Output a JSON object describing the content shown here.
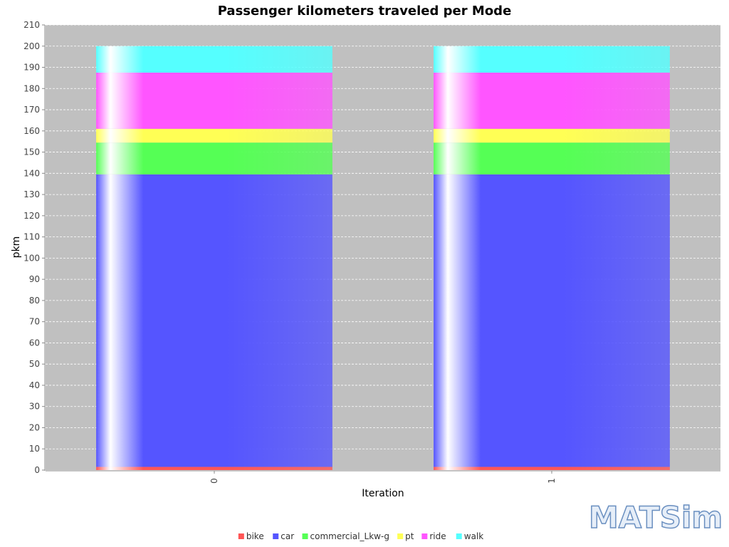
{
  "chart_data": {
    "type": "bar",
    "stacked": true,
    "title": "Passenger kilometers traveled per Mode",
    "xlabel": "Iteration",
    "ylabel": "pkm",
    "ylim": [
      0,
      210
    ],
    "ytick_step": 10,
    "grid": true,
    "legend_position": "bottom",
    "categories": [
      "0",
      "1"
    ],
    "series": [
      {
        "name": "bike",
        "color": "#ff5555",
        "values": [
          1.5,
          1.5
        ]
      },
      {
        "name": "car",
        "color": "#5555ff",
        "values": [
          138,
          138
        ]
      },
      {
        "name": "commercial_Lkw-g",
        "color": "#55ff55",
        "values": [
          15,
          15
        ]
      },
      {
        "name": "pt",
        "color": "#ffff55",
        "values": [
          6.5,
          6.5
        ]
      },
      {
        "name": "ride",
        "color": "#ff55ff",
        "values": [
          26.5,
          26.5
        ]
      },
      {
        "name": "walk",
        "color": "#55ffff",
        "values": [
          12.5,
          12.5
        ]
      }
    ]
  },
  "logo": {
    "text": "MATSim",
    "icon": "matsim-logo"
  }
}
